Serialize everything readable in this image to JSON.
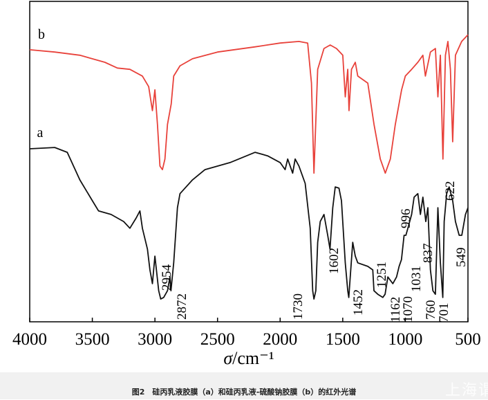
{
  "chart_data": {
    "type": "line",
    "title": "",
    "xlabel": "σ/cm⁻¹",
    "ylabel": "",
    "xlim": [
      4000,
      500
    ],
    "x_reversed": true,
    "ylim": [
      0,
      100
    ],
    "xticks": [
      4000,
      3500,
      3000,
      2500,
      2000,
      1500,
      1000,
      500
    ],
    "yticks_shown": false,
    "grid": false,
    "legend": "none",
    "series": [
      {
        "name": "b",
        "color": "#e8413a",
        "x": [
          4000,
          3800,
          3600,
          3400,
          3300,
          3200,
          3100,
          3050,
          3020,
          3000,
          2980,
          2960,
          2940,
          2920,
          2900,
          2870,
          2850,
          2800,
          2700,
          2500,
          2200,
          2000,
          1850,
          1780,
          1750,
          1730,
          1720,
          1700,
          1650,
          1600,
          1550,
          1500,
          1480,
          1460,
          1450,
          1430,
          1400,
          1380,
          1300,
          1250,
          1200,
          1160,
          1120,
          1080,
          1030,
          1000,
          950,
          900,
          860,
          840,
          800,
          760,
          740,
          720,
          700,
          680,
          660,
          640,
          622,
          600,
          550,
          500
        ],
        "y": [
          84.9,
          84.2,
          83.2,
          81.0,
          79.2,
          78.8,
          76.7,
          73.4,
          65.9,
          72.4,
          61.6,
          48.6,
          47.5,
          50.8,
          61.6,
          68.0,
          76.7,
          79.9,
          82.1,
          84.2,
          85.8,
          87.0,
          87.5,
          87.0,
          74.5,
          46.4,
          57.2,
          78.8,
          85.3,
          86.4,
          85.3,
          83.2,
          70.2,
          78.8,
          65.9,
          78.8,
          81.0,
          76.7,
          74.5,
          61.6,
          50.8,
          46.4,
          50.8,
          61.6,
          72.4,
          76.7,
          78.8,
          81.0,
          83.2,
          76.7,
          84.2,
          85.3,
          70.2,
          83.2,
          50.8,
          83.2,
          87.5,
          78.8,
          56.2,
          83.2,
          87.5,
          89.6
        ]
      },
      {
        "name": "a",
        "color": "#111111",
        "x": [
          4000,
          3800,
          3700,
          3650,
          3600,
          3500,
          3450,
          3350,
          3250,
          3200,
          3150,
          3120,
          3100,
          3060,
          3040,
          3020,
          3000,
          2970,
          2954,
          2930,
          2900,
          2880,
          2872,
          2850,
          2820,
          2800,
          2700,
          2600,
          2400,
          2200,
          2100,
          2000,
          1960,
          1940,
          1900,
          1880,
          1850,
          1800,
          1760,
          1740,
          1730,
          1715,
          1700,
          1680,
          1650,
          1620,
          1602,
          1580,
          1560,
          1530,
          1510,
          1480,
          1460,
          1452,
          1440,
          1420,
          1400,
          1380,
          1300,
          1260,
          1251,
          1220,
          1180,
          1162,
          1140,
          1100,
          1070,
          1050,
          1031,
          1010,
          996,
          980,
          950,
          930,
          900,
          880,
          860,
          837,
          820,
          800,
          780,
          760,
          740,
          720,
          701,
          690,
          670,
          650,
          622,
          600,
          570,
          549,
          520,
          500
        ],
        "y": [
          54.0,
          54.4,
          52.9,
          48.6,
          44.3,
          37.8,
          34.6,
          33.5,
          31.3,
          29.2,
          32.4,
          34.6,
          29.2,
          22.7,
          16.2,
          11.9,
          20.5,
          9.7,
          7.1,
          7.6,
          9.7,
          14.0,
          9.7,
          18.4,
          35.6,
          40.0,
          44.3,
          47.5,
          49.7,
          52.9,
          51.8,
          49.7,
          47.5,
          50.8,
          46.4,
          50.8,
          48.6,
          43.2,
          29.2,
          9.7,
          7.1,
          9.7,
          24.8,
          31.3,
          33.5,
          27.0,
          22.7,
          35.6,
          42.1,
          41.7,
          37.8,
          18.4,
          9.7,
          7.6,
          14.0,
          24.8,
          20.5,
          18.4,
          17.3,
          16.2,
          9.7,
          8.6,
          7.6,
          8.6,
          14.0,
          11.9,
          14.0,
          17.3,
          19.4,
          27.0,
          27.0,
          29.2,
          33.5,
          38.9,
          40.0,
          33.5,
          38.9,
          31.3,
          35.6,
          16.2,
          9.7,
          8.6,
          35.6,
          18.4,
          7.6,
          31.3,
          40.0,
          42.1,
          37.8,
          31.3,
          27.0,
          27.0,
          33.5,
          35.6
        ]
      }
    ],
    "annotations": [
      "2954",
      "2872",
      "1730",
      "1602",
      "1452",
      "1251",
      "1162",
      "1070",
      "1031",
      "996",
      "837",
      "760",
      "701",
      "622",
      "549"
    ]
  },
  "caption": "图2　硅丙乳液胶膜（a）和硅丙乳液-硫酸钠胶膜（b）的红外光谱",
  "watermark": "上海谓"
}
